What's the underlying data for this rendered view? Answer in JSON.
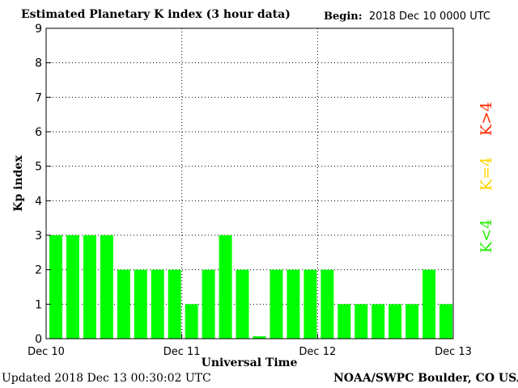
{
  "header": {
    "title": "Estimated Planetary K index (3 hour data)",
    "begin_label": "Begin:",
    "begin_value": "2018 Dec 10 0000 UTC"
  },
  "footer": {
    "updated": "Updated 2018 Dec 13 00:30:02 UTC",
    "credit": "NOAA/SWPC Boulder, CO USA"
  },
  "legend": {
    "high": {
      "label": "K>4",
      "color": "#ff2a00"
    },
    "equal": {
      "label": "K=4",
      "color": "#ffd400"
    },
    "low": {
      "label": "K<4",
      "color": "#22ee00"
    }
  },
  "chart_data": {
    "type": "bar",
    "title": "Estimated Planetary K index (3 hour data)",
    "xlabel": "Universal Time",
    "ylabel": "Kp index",
    "ylim": [
      0,
      9
    ],
    "yticks": [
      "0",
      "1",
      "2",
      "3",
      "4",
      "5",
      "6",
      "7",
      "8",
      "9"
    ],
    "xticks": [
      "Dec 10",
      "Dec 11",
      "Dec 12",
      "Dec 13"
    ],
    "bar_color": "#00ff00",
    "grid": true,
    "values": [
      3,
      3,
      3,
      3,
      2,
      2,
      2,
      2,
      1,
      2,
      3,
      2,
      0.07,
      2,
      2,
      2,
      2,
      1,
      1,
      1,
      1,
      1,
      2,
      1
    ]
  }
}
